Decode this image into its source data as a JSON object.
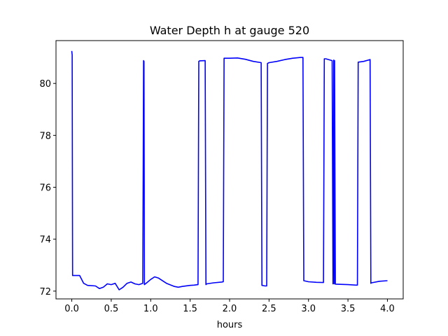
{
  "chart_data": {
    "type": "line",
    "title": "Water Depth h at gauge 520",
    "xlabel": "hours",
    "ylabel": "",
    "xlim": [
      -0.2,
      4.2
    ],
    "ylim": [
      71.7,
      81.65
    ],
    "xticks": [
      0.0,
      0.5,
      1.0,
      1.5,
      2.0,
      2.5,
      3.0,
      3.5,
      4.0
    ],
    "xtick_labels": [
      "0.0",
      "0.5",
      "1.0",
      "1.5",
      "2.0",
      "2.5",
      "3.0",
      "3.5",
      "4.0"
    ],
    "yticks": [
      72,
      74,
      76,
      78,
      80
    ],
    "ytick_labels": [
      "72",
      "74",
      "76",
      "78",
      "80"
    ],
    "grid": false,
    "legend": "none",
    "series": [
      {
        "color": "#0000ff",
        "x": [
          0.0,
          0.005,
          0.01,
          0.05,
          0.1,
          0.15,
          0.2,
          0.3,
          0.35,
          0.4,
          0.45,
          0.5,
          0.55,
          0.6,
          0.65,
          0.7,
          0.75,
          0.8,
          0.85,
          0.9,
          0.91,
          0.915,
          0.92,
          0.95,
          1.0,
          1.05,
          1.1,
          1.2,
          1.3,
          1.35,
          1.4,
          1.5,
          1.55,
          1.6,
          1.61,
          1.62,
          1.69,
          1.7,
          1.71,
          1.8,
          1.9,
          1.92,
          1.93,
          2.0,
          2.1,
          2.2,
          2.3,
          2.4,
          2.41,
          2.45,
          2.47,
          2.48,
          2.5,
          2.6,
          2.7,
          2.8,
          2.9,
          2.93,
          2.94,
          3.0,
          3.1,
          3.19,
          3.2,
          3.22,
          3.3,
          3.31,
          3.32,
          3.325,
          3.33,
          3.34,
          3.5,
          3.6,
          3.62,
          3.63,
          3.7,
          3.78,
          3.79,
          3.8,
          3.9,
          4.0
        ],
        "y": [
          81.25,
          81.1,
          72.6,
          72.6,
          72.6,
          72.3,
          72.22,
          72.2,
          72.1,
          72.15,
          72.28,
          72.25,
          72.3,
          72.05,
          72.15,
          72.3,
          72.35,
          72.28,
          72.25,
          72.3,
          80.88,
          80.85,
          72.25,
          72.32,
          72.45,
          72.55,
          72.5,
          72.3,
          72.18,
          72.15,
          72.18,
          72.22,
          72.23,
          72.25,
          80.85,
          80.87,
          80.88,
          72.25,
          72.28,
          72.32,
          72.35,
          72.36,
          80.97,
          80.97,
          80.98,
          80.93,
          80.85,
          80.8,
          72.22,
          72.2,
          72.2,
          80.77,
          80.8,
          80.85,
          80.92,
          80.97,
          81.0,
          81.0,
          72.4,
          72.36,
          72.34,
          72.33,
          80.95,
          80.95,
          80.88,
          72.28,
          80.9,
          72.28,
          80.88,
          72.27,
          72.25,
          72.23,
          72.23,
          80.82,
          80.85,
          80.92,
          72.3,
          72.32,
          72.38,
          72.4
        ]
      }
    ]
  }
}
